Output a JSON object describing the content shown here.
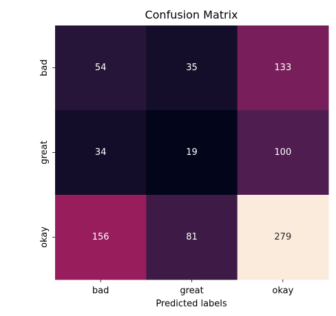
{
  "chart_data": {
    "type": "heatmap",
    "title": "Confusion Matrix",
    "xlabel": "Predicted labels",
    "ylabel": "",
    "x_categories": [
      "bad",
      "great",
      "okay"
    ],
    "y_categories": [
      "bad",
      "great",
      "okay"
    ],
    "values": [
      [
        54,
        35,
        133
      ],
      [
        34,
        19,
        100
      ],
      [
        156,
        81,
        279
      ]
    ],
    "value_range": [
      19,
      279
    ],
    "colormap": "rocket",
    "colorbar": false,
    "grid": false
  }
}
